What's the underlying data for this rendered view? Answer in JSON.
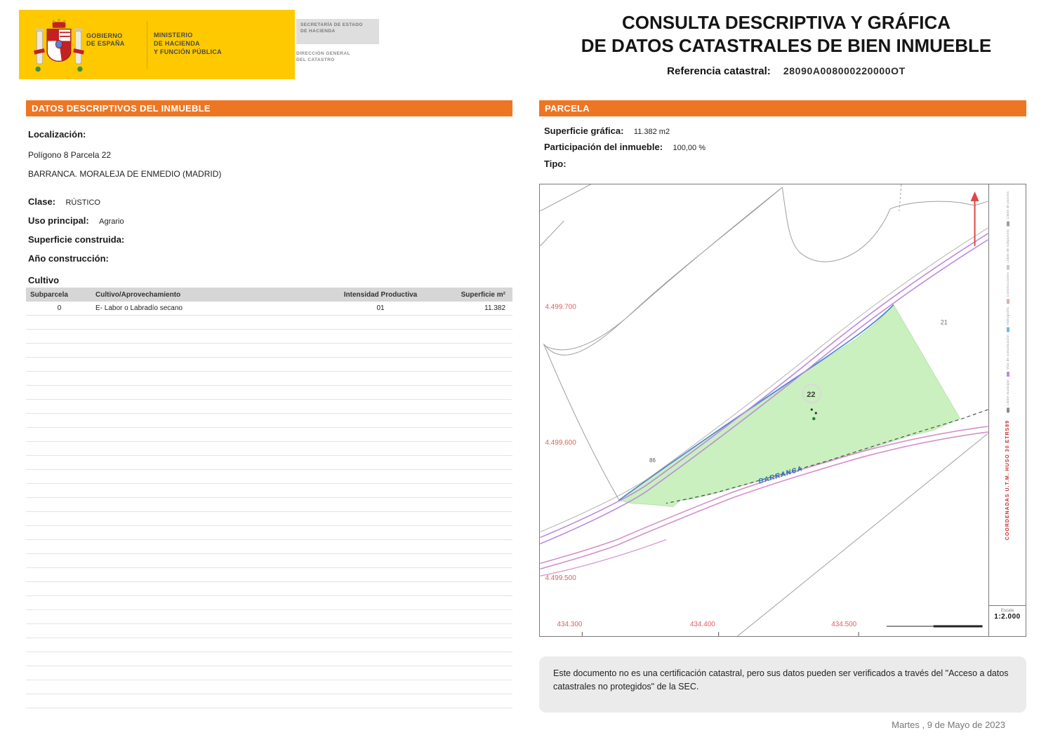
{
  "header": {
    "logo": {
      "gobierno": [
        "GOBIERNO",
        "DE ESPAÑA"
      ],
      "ministerio": [
        "MINISTERIO",
        "DE HACIENDA",
        "Y FUNCIÓN PÚBLICA"
      ]
    },
    "secretaria": [
      "SECRETARÍA DE ESTADO",
      "DE HACIENDA"
    ],
    "direccion": [
      "DIRECCIÓN GENERAL",
      "DEL CATASTRO"
    ],
    "title": [
      "CONSULTA DESCRIPTIVA Y GRÁFICA",
      "DE DATOS CATASTRALES DE BIEN INMUEBLE"
    ],
    "ref_label": "Referencia catastral:",
    "ref_value": "28090A008000220000OT"
  },
  "inmueble": {
    "panel_title": "DATOS DESCRIPTIVOS DEL INMUEBLE",
    "localizacion_label": "Localización:",
    "localizacion": [
      "Polígono 8 Parcela 22",
      "BARRANCA. MORALEJA DE ENMEDIO (MADRID)"
    ],
    "clase_label": "Clase:",
    "clase": "RÚSTICO",
    "uso_label": "Uso principal:",
    "uso": "Agrario",
    "sup_label": "Superficie construida:",
    "sup": "",
    "anio_label": "Año construcción:",
    "anio": "",
    "cultivo_label": "Cultivo",
    "tabla": {
      "headers": [
        "Subparcela",
        "Cultivo/Aprovechamiento",
        "Intensidad Productiva",
        "Superficie m²"
      ],
      "rows": [
        [
          "0",
          "E- Labor o Labradío secano",
          "01",
          "11.382"
        ]
      ]
    }
  },
  "parcela": {
    "panel_title": "PARCELA",
    "sup_label": "Superficie gráfica:",
    "sup": "11.382 m2",
    "part_label": "Participación del inmueble:",
    "part": "100,00 %",
    "tipo_label": "Tipo:",
    "tipo": ""
  },
  "map": {
    "grid_y": [
      "4.499.700",
      "4.499.600",
      "4.499.500"
    ],
    "grid_x": [
      "434.300",
      "434.400",
      "434.500"
    ],
    "parcel_number": "22",
    "neighbor_number": "21",
    "angle_label": "86",
    "stream_name": "BARRANCA",
    "legend": [
      "Límite de parcela",
      "Límite de subparcela",
      "Construcciones",
      "Hidrografía",
      "Vías de comunicación",
      "Límite municipal"
    ],
    "crs_note": "COORDENADAS U.T.M. HUSO 30 ETRS89",
    "escala_label": "Escala",
    "escala": "1:2.000"
  },
  "footer": {
    "disclaimer": "Este documento no es una certificación catastral, pero sus datos pueden ser verificados a través del \"Acceso a datos catastrales no protegidos\" de la SEC.",
    "date": "Martes , 9 de Mayo de 2023"
  }
}
